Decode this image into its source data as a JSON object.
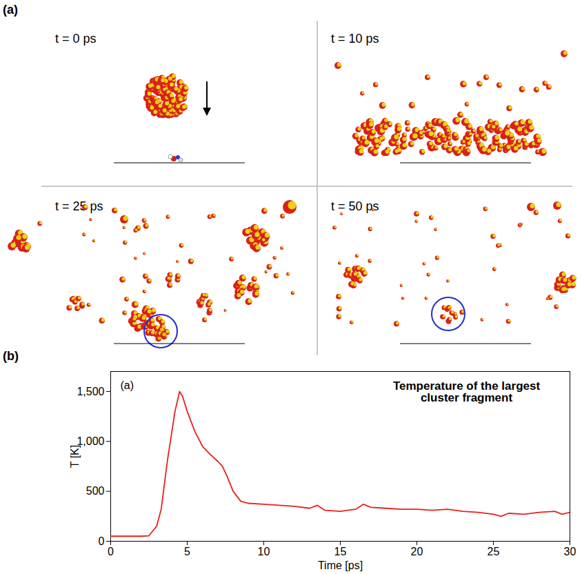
{
  "figure": {
    "panel_a": {
      "label": "(a)",
      "snapshots": [
        "t = 0 ps",
        "t = 10 ps",
        "t = 25 ps",
        "t = 50 ps"
      ]
    },
    "panel_b": {
      "label": "(b)"
    }
  },
  "chart_data": {
    "type": "line",
    "annotations": [
      "(a)",
      "Temperature of the largest cluster fragment"
    ],
    "x_label": "Time [ps]",
    "y_label": "T [K]",
    "x": [
      0,
      1,
      2,
      2.5,
      3,
      3.3,
      3.7,
      4.2,
      4.5,
      4.7,
      5,
      5.5,
      6,
      6.5,
      7,
      7.3,
      7.6,
      8,
      8.5,
      9,
      10,
      11,
      12,
      13,
      13.5,
      14,
      15,
      16,
      16.5,
      17,
      18,
      19,
      20,
      21,
      22,
      23,
      24,
      25,
      25.5,
      26,
      27,
      28,
      29,
      29.5,
      30
    ],
    "values": [
      50,
      50,
      50,
      55,
      150,
      320,
      800,
      1300,
      1500,
      1450,
      1300,
      1100,
      950,
      870,
      800,
      750,
      650,
      500,
      400,
      380,
      370,
      360,
      350,
      330,
      360,
      310,
      300,
      320,
      370,
      340,
      330,
      320,
      320,
      310,
      320,
      300,
      290,
      270,
      250,
      280,
      270,
      290,
      300,
      270,
      290
    ],
    "color": "#e8201c",
    "xlim": [
      0,
      30
    ],
    "xticks": [
      0,
      5,
      10,
      15,
      20,
      25,
      30
    ],
    "ylim": [
      0,
      1700
    ],
    "yticks": [
      0,
      500,
      1000,
      1500
    ],
    "grid": false
  }
}
